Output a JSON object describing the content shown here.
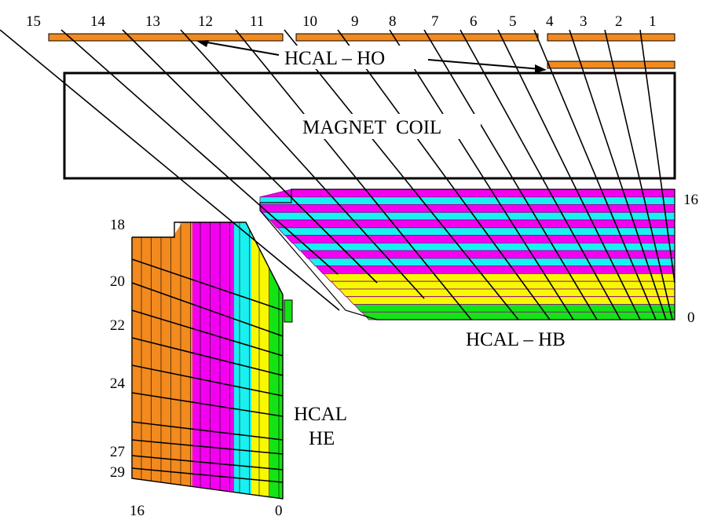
{
  "tower_labels": [
    "15",
    "14",
    "13",
    "12",
    "11",
    "10",
    "9",
    "8",
    "7",
    "6",
    "5",
    "4",
    "3",
    "2",
    "1"
  ],
  "labels": {
    "ho": "HCAL – HO",
    "magnet": "MAGNET  COIL",
    "hb": "HCAL – HB",
    "he_line1": "HCAL",
    "he_line2": "HE"
  },
  "hb_depth_labels": {
    "top": "16",
    "bottom": "0"
  },
  "he_depth_labels": {
    "l18": "18",
    "l20": "20",
    "l22": "22",
    "l24": "24",
    "l27": "27",
    "l29": "29"
  },
  "he_bottom_labels": {
    "left": "16",
    "right": "0"
  },
  "colors": {
    "orange": "#f28a1e",
    "magenta": "#f400f0",
    "cyan": "#19f0f0",
    "yellow": "#f8f800",
    "green": "#14e414",
    "line": "#000000"
  }
}
